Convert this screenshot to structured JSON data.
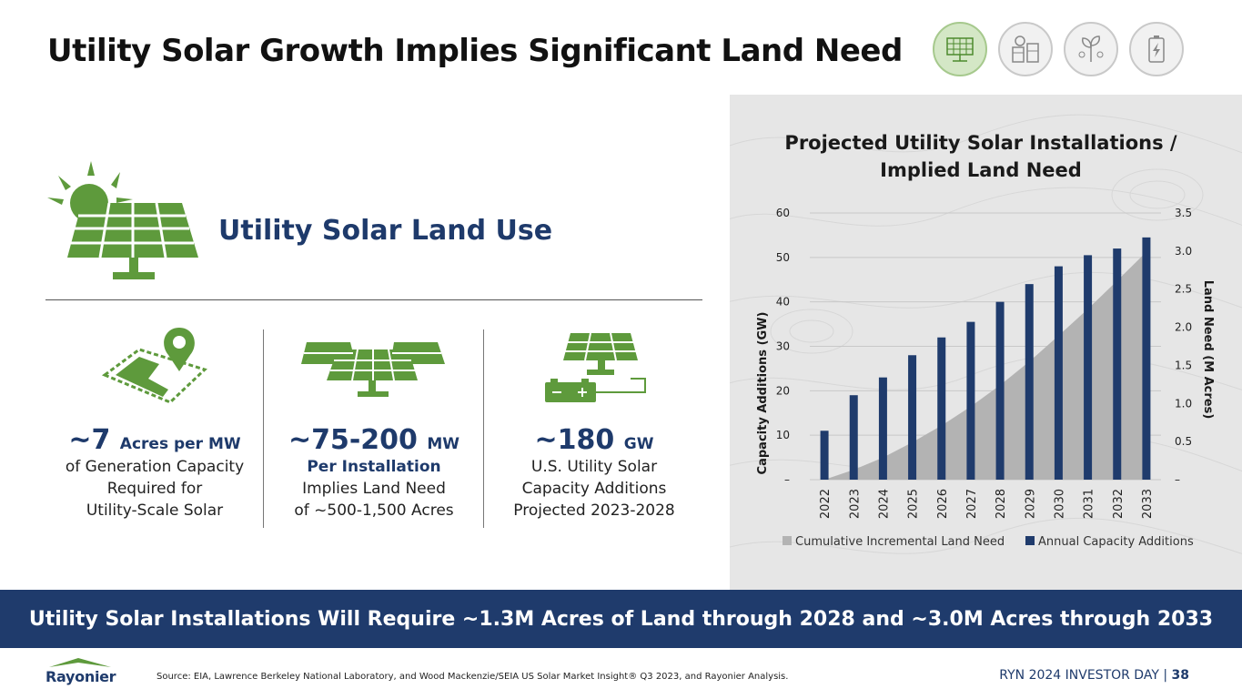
{
  "header": {
    "title": "Utility Solar Growth Implies Significant Land Need"
  },
  "theme_icons": [
    {
      "name": "solar-panel-icon",
      "active": true
    },
    {
      "name": "carbon-capture-icon",
      "active": false
    },
    {
      "name": "sapling-icon",
      "active": false
    },
    {
      "name": "battery-icon",
      "active": false
    }
  ],
  "section": {
    "title": "Utility Solar Land Use"
  },
  "stats": [
    {
      "big": "~7",
      "unit": "Acres per MW",
      "lines": [
        "of Generation Capacity",
        "Required for",
        "Utility-Scale Solar"
      ]
    },
    {
      "big": "~75-200",
      "unit": "MW",
      "bold_line": "Per Installation",
      "lines": [
        "Implies Land Need",
        "of ~500-1,500 Acres"
      ]
    },
    {
      "big": "~180",
      "unit": "GW",
      "lines": [
        "U.S. Utility Solar",
        "Capacity Additions",
        "Projected 2023-2028"
      ]
    }
  ],
  "chart_data": {
    "type": "bar",
    "title_lines": [
      "Projected Utility Solar Installations /",
      "Implied Land Need"
    ],
    "categories": [
      "2022",
      "2023",
      "2024",
      "2025",
      "2026",
      "2027",
      "2028",
      "2029",
      "2030",
      "2031",
      "2032",
      "2033"
    ],
    "series": [
      {
        "name": "Annual Capacity Additions",
        "type": "bar",
        "axis": "left",
        "color": "#1f3b6c",
        "values": [
          11,
          19,
          23,
          28,
          32,
          35.5,
          40,
          44,
          48,
          50.5,
          52,
          54.5
        ]
      },
      {
        "name": "Cumulative Incremental Land Need",
        "type": "area",
        "axis": "right",
        "color": "#b3b3b3",
        "values": [
          0,
          0.13,
          0.29,
          0.49,
          0.71,
          0.96,
          1.24,
          1.55,
          1.89,
          2.24,
          2.61,
          2.99
        ]
      }
    ],
    "ylabel": "Capacity Additions (GW)",
    "y2label": "Land Need (M Acres)",
    "ylim": [
      0,
      60
    ],
    "y2lim": [
      0,
      3.5
    ],
    "yticks": [
      "–",
      "10",
      "20",
      "30",
      "40",
      "50",
      "60"
    ],
    "y2ticks": [
      "–",
      "0.5",
      "1.0",
      "1.5",
      "2.0",
      "2.5",
      "3.0",
      "3.5"
    ],
    "grid": true,
    "legend": [
      "Cumulative Incremental Land Need",
      "Annual Capacity Additions"
    ]
  },
  "banner": {
    "text": "Utility Solar Installations Will Require ~1.3M Acres of Land through 2028 and ~3.0M Acres through 2033"
  },
  "footer": {
    "logo": "Rayonier",
    "source": "Source: EIA, Lawrence Berkeley National Laboratory, and Wood Mackenzie/SEIA US Solar Market Insight® Q3 2023, and Rayonier Analysis.",
    "event": "RYN 2024 INVESTOR DAY",
    "separator": "|",
    "page": "38"
  },
  "colors": {
    "navy": "#1f3b6c",
    "green": "#5e9a3c",
    "panel": "#e6e6e6",
    "area": "#b3b3b3"
  }
}
